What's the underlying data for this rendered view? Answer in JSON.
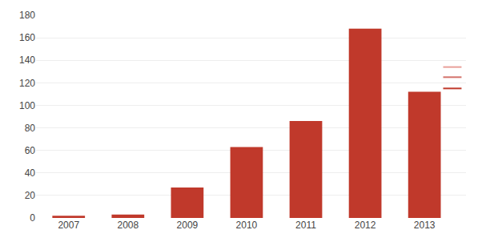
{
  "chart_data": {
    "type": "bar",
    "categories": [
      "2007",
      "2008",
      "2009",
      "2010",
      "2011",
      "2012",
      "2013"
    ],
    "values": [
      2,
      3,
      27,
      63,
      86,
      168,
      112
    ],
    "color": "#c0392b",
    "ylim": [
      0,
      180
    ],
    "yticks": [
      0,
      20,
      40,
      60,
      80,
      100,
      120,
      140,
      160,
      180
    ],
    "grid": true,
    "projections": {
      "values": [
        134,
        125,
        115
      ],
      "colors": [
        "#e8a09a",
        "#d4736b",
        "#c0392b"
      ]
    }
  }
}
